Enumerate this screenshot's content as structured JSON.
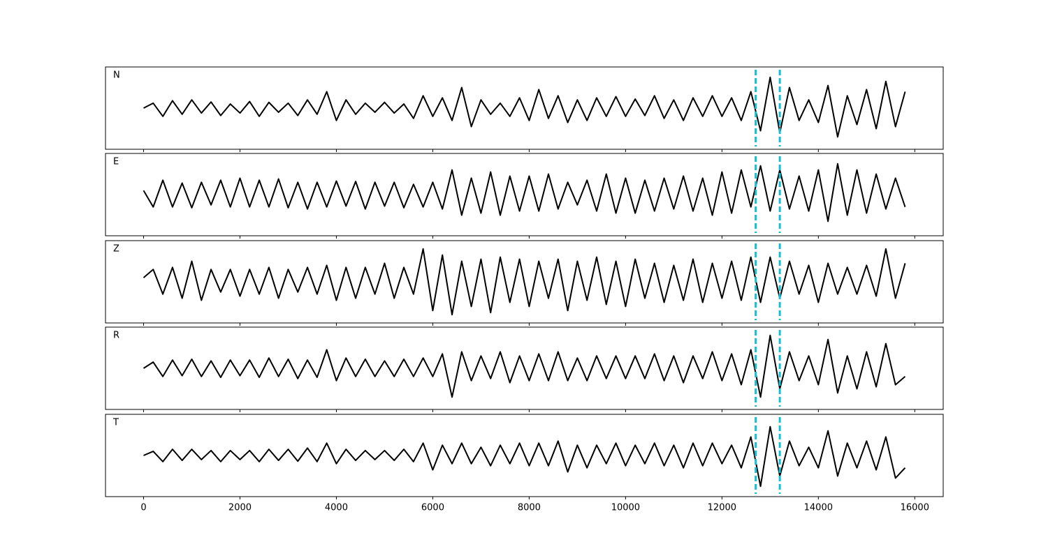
{
  "chart_data": {
    "type": "line",
    "x": [
      0,
      200,
      400,
      600,
      800,
      1000,
      1200,
      1400,
      1600,
      1800,
      2000,
      2200,
      2400,
      2600,
      2800,
      3000,
      3200,
      3400,
      3600,
      3800,
      4000,
      4200,
      4400,
      4600,
      4800,
      5000,
      5200,
      5400,
      5600,
      5800,
      6000,
      6200,
      6400,
      6600,
      6800,
      7000,
      7200,
      7400,
      7600,
      7800,
      8000,
      8200,
      8400,
      8600,
      8800,
      9000,
      9200,
      9400,
      9600,
      9800,
      10000,
      10200,
      10400,
      10600,
      10800,
      11000,
      11200,
      11400,
      11600,
      11800,
      12000,
      12200,
      12400,
      12600,
      12800,
      13000,
      13200,
      13400,
      13600,
      13800,
      14000,
      14200,
      14400,
      14600,
      14800,
      15000,
      15200,
      15400,
      15600,
      15800
    ],
    "xlim": [
      -790,
      16590
    ],
    "xticks": [
      0,
      2000,
      4000,
      6000,
      8000,
      10000,
      12000,
      14000,
      16000
    ],
    "ylim": [
      -1,
      1
    ],
    "line_color": "#000000",
    "markers": [
      12700,
      13200
    ],
    "marker_color": "#17becf",
    "series": [
      {
        "name": "N",
        "values": [
          0,
          0.12,
          -0.2,
          0.18,
          -0.15,
          0.2,
          -0.12,
          0.15,
          -0.18,
          0.1,
          -0.12,
          0.16,
          -0.2,
          0.14,
          -0.1,
          0.12,
          -0.18,
          0.2,
          -0.15,
          0.4,
          -0.3,
          0.2,
          -0.15,
          0.12,
          -0.1,
          0.14,
          -0.12,
          0.1,
          -0.25,
          0.3,
          -0.2,
          0.25,
          -0.3,
          0.5,
          -0.45,
          0.2,
          -0.15,
          0.12,
          -0.2,
          0.25,
          -0.3,
          0.45,
          -0.25,
          0.3,
          -0.35,
          0.2,
          -0.3,
          0.25,
          -0.2,
          0.28,
          -0.2,
          0.22,
          -0.18,
          0.3,
          -0.25,
          0.2,
          -0.3,
          0.25,
          -0.2,
          0.3,
          -0.2,
          0.25,
          -0.3,
          0.4,
          -0.55,
          0.75,
          -0.6,
          0.5,
          -0.3,
          0.2,
          -0.35,
          0.55,
          -0.7,
          0.3,
          -0.4,
          0.45,
          -0.5,
          0.65,
          -0.45,
          0.4
        ]
      },
      {
        "name": "E",
        "values": [
          0.1,
          -0.3,
          0.35,
          -0.3,
          0.28,
          -0.32,
          0.3,
          -0.25,
          0.35,
          -0.3,
          0.4,
          -0.3,
          0.35,
          -0.3,
          0.38,
          -0.32,
          0.3,
          -0.35,
          0.3,
          -0.3,
          0.33,
          -0.28,
          0.32,
          -0.35,
          0.3,
          -0.28,
          0.3,
          -0.32,
          0.25,
          -0.3,
          0.3,
          -0.35,
          0.6,
          -0.5,
          0.4,
          -0.45,
          0.55,
          -0.5,
          0.45,
          -0.4,
          0.45,
          -0.4,
          0.5,
          -0.35,
          0.3,
          -0.25,
          0.35,
          -0.4,
          0.5,
          -0.45,
          0.4,
          -0.45,
          0.35,
          -0.4,
          0.4,
          -0.35,
          0.45,
          -0.4,
          0.4,
          -0.5,
          0.55,
          -0.45,
          0.6,
          -0.3,
          0.7,
          -0.4,
          0.6,
          -0.35,
          0.45,
          -0.4,
          0.6,
          -0.65,
          0.75,
          -0.5,
          0.6,
          -0.45,
          0.5,
          -0.35,
          0.4,
          -0.3
        ]
      },
      {
        "name": "Z",
        "values": [
          0.1,
          0.3,
          -0.3,
          0.35,
          -0.4,
          0.5,
          -0.45,
          0.3,
          -0.25,
          0.3,
          -0.35,
          0.3,
          -0.3,
          0.35,
          -0.4,
          0.3,
          -0.25,
          0.35,
          -0.3,
          0.4,
          -0.45,
          0.35,
          -0.4,
          0.35,
          -0.3,
          0.45,
          -0.4,
          0.35,
          -0.3,
          0.8,
          -0.7,
          0.65,
          -0.8,
          0.5,
          -0.6,
          0.55,
          -0.75,
          0.6,
          -0.5,
          0.55,
          -0.6,
          0.5,
          -0.4,
          0.55,
          -0.7,
          0.5,
          -0.45,
          0.6,
          -0.55,
          0.5,
          -0.6,
          0.55,
          -0.4,
          0.45,
          -0.5,
          0.4,
          -0.45,
          0.55,
          -0.5,
          0.45,
          -0.4,
          0.5,
          -0.45,
          0.6,
          -0.5,
          0.6,
          -0.4,
          0.5,
          -0.3,
          0.4,
          -0.5,
          0.45,
          -0.3,
          0.35,
          -0.3,
          0.4,
          -0.35,
          0.8,
          -0.4,
          0.45
        ]
      },
      {
        "name": "R",
        "values": [
          0,
          0.15,
          -0.2,
          0.2,
          -0.18,
          0.22,
          -0.2,
          0.18,
          -0.22,
          0.2,
          -0.18,
          0.2,
          -0.22,
          0.25,
          -0.2,
          0.22,
          -0.25,
          0.2,
          -0.22,
          0.45,
          -0.3,
          0.25,
          -0.2,
          0.22,
          -0.2,
          0.18,
          -0.2,
          0.22,
          -0.2,
          0.25,
          -0.2,
          0.35,
          -0.7,
          0.4,
          -0.3,
          0.3,
          -0.25,
          0.4,
          -0.35,
          0.3,
          -0.3,
          0.35,
          -0.3,
          0.4,
          -0.3,
          0.25,
          -0.3,
          0.3,
          -0.25,
          0.3,
          -0.25,
          0.3,
          -0.25,
          0.35,
          -0.3,
          0.3,
          -0.35,
          0.3,
          -0.25,
          0.4,
          -0.3,
          0.35,
          -0.4,
          0.45,
          -0.7,
          0.8,
          -0.5,
          0.4,
          -0.3,
          0.3,
          -0.4,
          0.7,
          -0.6,
          0.3,
          -0.5,
          0.4,
          -0.45,
          0.6,
          -0.4,
          -0.2
        ]
      },
      {
        "name": "T",
        "values": [
          0,
          0.1,
          -0.15,
          0.15,
          -0.12,
          0.15,
          -0.1,
          0.12,
          -0.15,
          0.12,
          -0.1,
          0.12,
          -0.15,
          0.15,
          -0.12,
          0.15,
          -0.14,
          0.18,
          -0.15,
          0.3,
          -0.2,
          0.15,
          -0.12,
          0.12,
          -0.1,
          0.12,
          -0.12,
          0.15,
          -0.15,
          0.3,
          -0.35,
          0.25,
          -0.2,
          0.3,
          -0.2,
          0.2,
          -0.25,
          0.25,
          -0.2,
          0.3,
          -0.25,
          0.3,
          -0.25,
          0.35,
          -0.4,
          0.25,
          -0.3,
          0.25,
          -0.2,
          0.3,
          -0.25,
          0.25,
          -0.2,
          0.3,
          -0.25,
          0.25,
          -0.3,
          0.3,
          -0.25,
          0.3,
          -0.2,
          0.25,
          -0.3,
          0.45,
          -0.75,
          0.7,
          -0.5,
          0.35,
          -0.25,
          0.2,
          -0.3,
          0.6,
          -0.5,
          0.3,
          -0.3,
          0.35,
          -0.35,
          0.45,
          -0.55,
          -0.3
        ]
      }
    ]
  }
}
